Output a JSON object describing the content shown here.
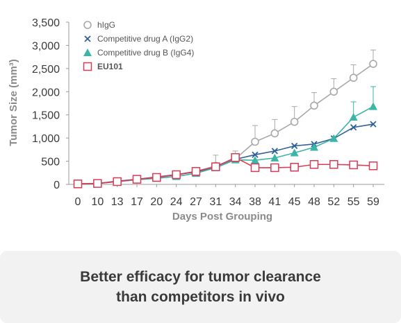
{
  "chart_data": {
    "type": "line",
    "xlabel": "Days Post Grouping",
    "ylabel": "Tumor Size (mm³)",
    "ylim": [
      0,
      3500
    ],
    "yticks": [
      "0",
      "500",
      "1,000",
      "1,500",
      "2,000",
      "2,500",
      "3,000",
      "3,500"
    ],
    "yticks_values": [
      0,
      500,
      1000,
      1500,
      2000,
      2500,
      3000,
      3500
    ],
    "x": [
      "0",
      "10",
      "13",
      "17",
      "20",
      "24",
      "27",
      "31",
      "34",
      "38",
      "41",
      "45",
      "48",
      "52",
      "55",
      "59"
    ],
    "legend_position": "top-left",
    "grid": false,
    "series": [
      {
        "name": "hIgG",
        "color": "#a8a8a8",
        "marker": "open-circle",
        "values": [
          10,
          20,
          60,
          100,
          150,
          200,
          280,
          400,
          550,
          920,
          1100,
          1350,
          1700,
          2000,
          2300,
          2600
        ],
        "errors": [
          0,
          0,
          30,
          40,
          40,
          60,
          80,
          230,
          170,
          350,
          300,
          330,
          280,
          280,
          280,
          300
        ]
      },
      {
        "name": "Competitive drug A (IgG2)",
        "color": "#2e5f96",
        "marker": "x",
        "values": [
          10,
          20,
          70,
          110,
          160,
          210,
          270,
          360,
          540,
          640,
          720,
          830,
          870,
          990,
          1230,
          1300
        ],
        "errors": []
      },
      {
        "name": "Competitive drug B (IgG4)",
        "color": "#3ab5a6",
        "marker": "filled-triangle",
        "values": [
          10,
          20,
          60,
          100,
          130,
          170,
          240,
          360,
          530,
          520,
          570,
          680,
          800,
          990,
          1450,
          1680
        ],
        "errors": [
          0,
          0,
          0,
          0,
          0,
          0,
          0,
          0,
          0,
          0,
          0,
          0,
          0,
          0,
          330,
          430
        ]
      },
      {
        "name": "EU101",
        "color": "#d83a55",
        "marker": "open-square",
        "values": [
          10,
          20,
          60,
          110,
          150,
          210,
          280,
          380,
          580,
          360,
          360,
          370,
          430,
          430,
          420,
          400
        ],
        "errors": [
          0,
          0,
          0,
          0,
          0,
          0,
          0,
          0,
          0,
          80,
          60,
          60,
          60,
          50,
          50,
          50
        ]
      }
    ]
  },
  "caption": {
    "line1": "Better efficacy for tumor clearance",
    "line2": "than competitors in vivo"
  }
}
